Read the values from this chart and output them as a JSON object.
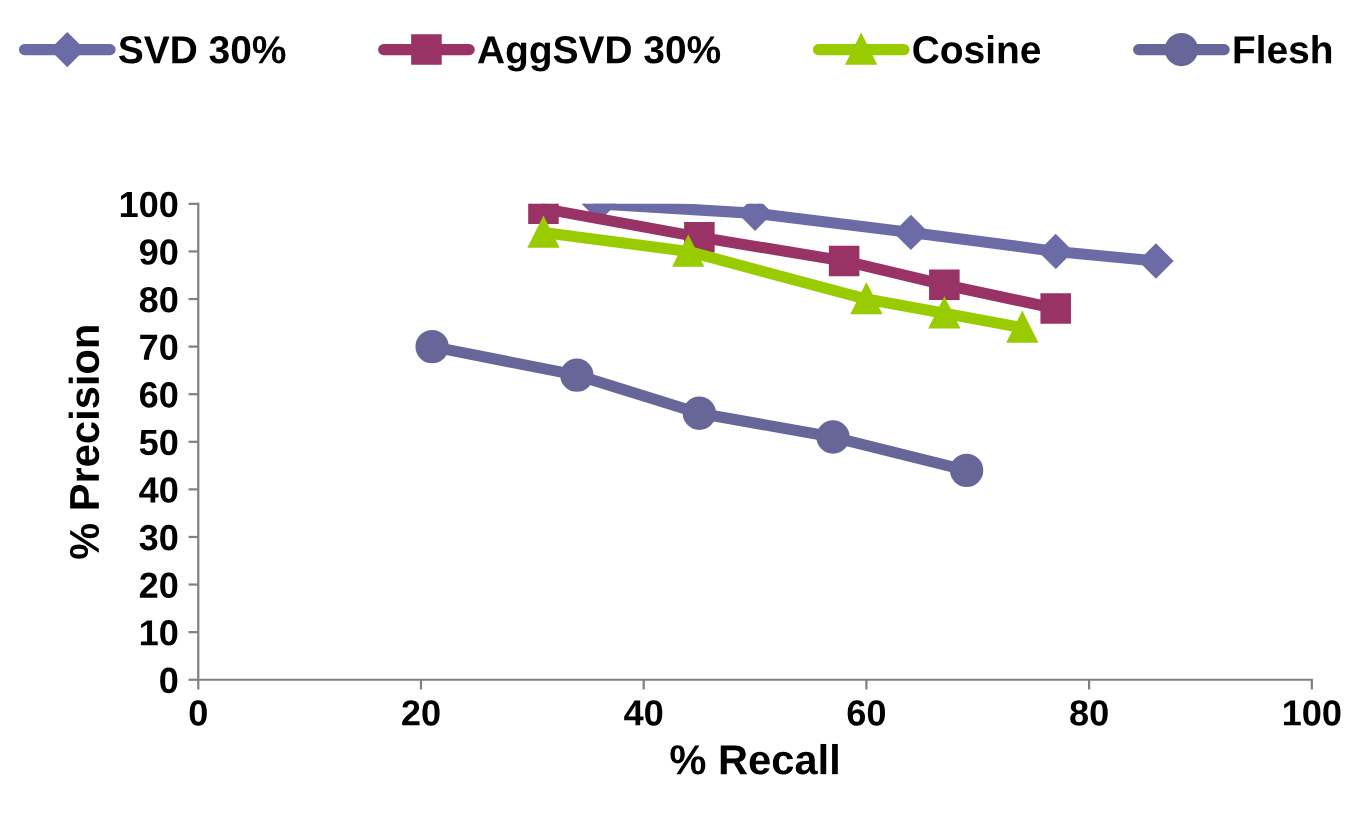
{
  "chart_data": {
    "type": "line",
    "xlabel": "% Recall",
    "ylabel": "% Precision",
    "xlim": [
      0,
      100
    ],
    "xticks": [
      0,
      20,
      40,
      60,
      80,
      100
    ],
    "ylim": [
      0,
      100
    ],
    "yticks": [
      0,
      10,
      20,
      30,
      40,
      50,
      60,
      70,
      80,
      90,
      100
    ],
    "grid": false,
    "legend": "top",
    "line_style": "solid",
    "series": [
      {
        "name": "SVD 30%",
        "color": "#6b6ba6",
        "marker": "diamond",
        "x": [
          36,
          50,
          64,
          77,
          86
        ],
        "values": [
          100,
          98,
          94,
          90,
          88
        ]
      },
      {
        "name": "AggSVD 30%",
        "color": "#993366",
        "marker": "square",
        "x": [
          31,
          45,
          58,
          67,
          77
        ],
        "values": [
          99,
          93,
          88,
          83,
          78
        ]
      },
      {
        "name": "Cosine",
        "color": "#99cc00",
        "marker": "triangle",
        "x": [
          31,
          44,
          60,
          67,
          74
        ],
        "values": [
          94,
          90,
          80,
          77,
          74
        ]
      },
      {
        "name": "Flesh",
        "color": "#666699",
        "marker": "circle",
        "x": [
          21,
          34,
          45,
          57,
          69
        ],
        "values": [
          70,
          64,
          56,
          51,
          44
        ]
      }
    ]
  }
}
